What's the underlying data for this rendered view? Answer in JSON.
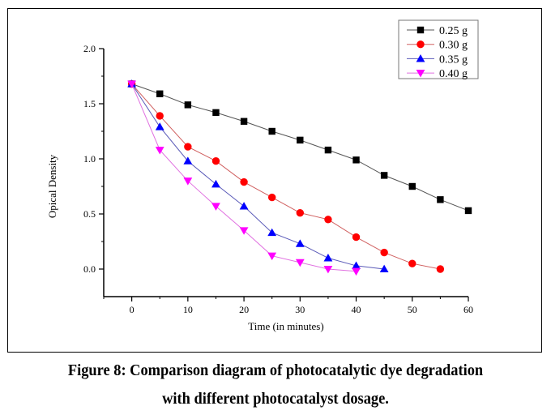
{
  "chart_data": {
    "type": "line",
    "title": "",
    "xlabel": "Time (in minutes)",
    "ylabel": "Opical Density",
    "xlim": [
      -5,
      60
    ],
    "ylim": [
      -0.25,
      2.0
    ],
    "xticks": [
      0,
      10,
      20,
      30,
      40,
      50,
      60
    ],
    "xtick_labels": [
      "0",
      "10",
      "20",
      "30",
      "40",
      "50",
      "60"
    ],
    "xminor_step": 5,
    "yticks": [
      0.0,
      0.5,
      1.0,
      1.5,
      2.0
    ],
    "ytick_labels": [
      "0.0",
      "0.5",
      "1.0",
      "1.5",
      "2.0"
    ],
    "yminor_step": 0.25,
    "grid": false,
    "legend_position": "top-right",
    "series": [
      {
        "name": "0.25 g",
        "color": "#000000",
        "line_color": "#555555",
        "marker": "square",
        "x": [
          0,
          5,
          10,
          15,
          20,
          25,
          30,
          35,
          40,
          45,
          50,
          55,
          60
        ],
        "y": [
          1.68,
          1.59,
          1.49,
          1.42,
          1.34,
          1.25,
          1.17,
          1.08,
          0.99,
          0.85,
          0.75,
          0.63,
          0.53
        ]
      },
      {
        "name": "0.30 g",
        "color": "#ff0000",
        "line_color": "#d06060",
        "marker": "circle",
        "x": [
          0,
          5,
          10,
          15,
          20,
          25,
          30,
          35,
          40,
          45,
          50,
          55
        ],
        "y": [
          1.68,
          1.39,
          1.11,
          0.98,
          0.79,
          0.65,
          0.51,
          0.45,
          0.29,
          0.15,
          0.05,
          0.0
        ]
      },
      {
        "name": "0.35 g",
        "color": "#0000ff",
        "line_color": "#5a5ab8",
        "marker": "triangle-up",
        "x": [
          0,
          5,
          10,
          15,
          20,
          25,
          30,
          35,
          40,
          45
        ],
        "y": [
          1.68,
          1.29,
          0.98,
          0.77,
          0.57,
          0.33,
          0.23,
          0.1,
          0.03,
          0.0
        ]
      },
      {
        "name": "0.40 g",
        "color": "#ff00ff",
        "line_color": "#e070e0",
        "marker": "triangle-down",
        "x": [
          0,
          5,
          10,
          15,
          20,
          25,
          30,
          35,
          40
        ],
        "y": [
          1.68,
          1.08,
          0.8,
          0.57,
          0.35,
          0.12,
          0.06,
          0.0,
          -0.02
        ]
      }
    ]
  },
  "caption": {
    "line1": "Figure 8: Comparison diagram of photocatalytic dye degradation",
    "line2": "with different photocatalyst dosage."
  }
}
